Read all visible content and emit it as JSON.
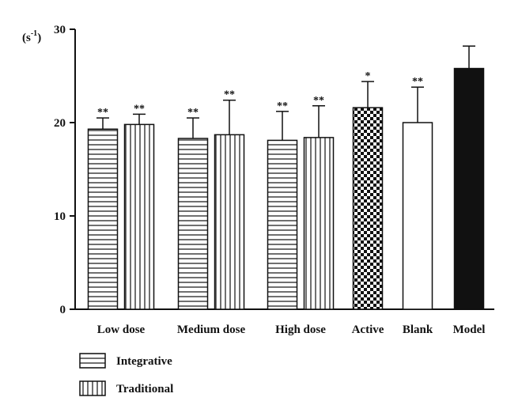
{
  "chart_data": {
    "type": "bar",
    "ylabel": "(s-1)",
    "ylim": [
      0,
      30
    ],
    "yticks": [
      0,
      10,
      20,
      30
    ],
    "grid": false,
    "legend_position": "bottom-left",
    "groups": [
      {
        "category": "Low dose",
        "bars": [
          {
            "series": "Integrative",
            "value": 19.3,
            "error": 1.2,
            "sig": "**"
          },
          {
            "series": "Traditional",
            "value": 19.8,
            "error": 1.1,
            "sig": "**"
          }
        ]
      },
      {
        "category": "Medium dose",
        "bars": [
          {
            "series": "Integrative",
            "value": 18.3,
            "error": 2.2,
            "sig": "**"
          },
          {
            "series": "Traditional",
            "value": 18.7,
            "error": 3.7,
            "sig": "**"
          }
        ]
      },
      {
        "category": "High dose",
        "bars": [
          {
            "series": "Integrative",
            "value": 18.1,
            "error": 3.1,
            "sig": "**"
          },
          {
            "series": "Traditional",
            "value": 18.4,
            "error": 3.4,
            "sig": "**"
          }
        ]
      },
      {
        "category": "Active",
        "bars": [
          {
            "series": "Active",
            "value": 21.6,
            "error": 2.8,
            "sig": "*"
          }
        ]
      },
      {
        "category": "Blank",
        "bars": [
          {
            "series": "Blank",
            "value": 20.0,
            "error": 3.8,
            "sig": "**"
          }
        ]
      },
      {
        "category": "Model",
        "bars": [
          {
            "series": "Model",
            "value": 25.8,
            "error": 2.4,
            "sig": ""
          }
        ]
      }
    ],
    "series_styles": {
      "Integrative": "horizontal-hatch",
      "Traditional": "vertical-hatch",
      "Active": "checkerboard",
      "Blank": "white",
      "Model": "black"
    },
    "legend": [
      {
        "name": "Integrative",
        "pattern": "horizontal-hatch"
      },
      {
        "name": "Traditional",
        "pattern": "vertical-hatch"
      }
    ]
  },
  "colors": {
    "ink": "#111111",
    "background": "#ffffff"
  }
}
